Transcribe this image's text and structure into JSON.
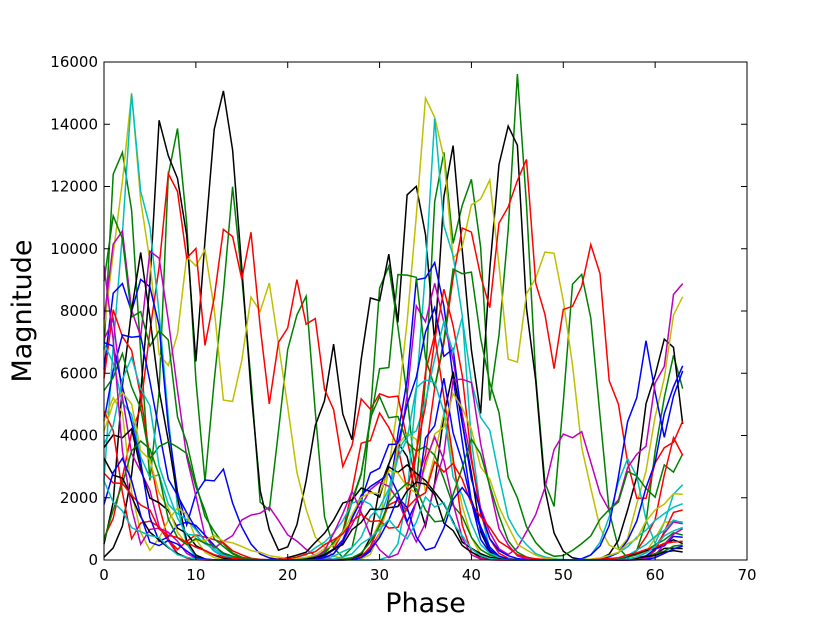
{
  "chart_data": {
    "type": "line",
    "title": "",
    "xlabel": "Phase",
    "ylabel": "Magnitude",
    "xlim": [
      0,
      70
    ],
    "ylim": [
      0,
      16000
    ],
    "x_ticks": [
      0,
      10,
      20,
      30,
      40,
      50,
      60,
      70
    ],
    "y_ticks": [
      0,
      2000,
      4000,
      6000,
      8000,
      10000,
      12000,
      14000,
      16000
    ],
    "grid": false,
    "legend": "none",
    "colors": [
      "#0000ff",
      "#008000",
      "#ff0000",
      "#00bfbf",
      "#bf00bf",
      "#bfbf00",
      "#000000"
    ],
    "phase_points": 64,
    "series": [
      {
        "color": "#008000",
        "peaks": [
          [
            2,
            14800
          ],
          [
            8,
            13500
          ],
          [
            14,
            12000
          ],
          [
            21,
            9100
          ],
          [
            31,
            10100
          ],
          [
            37,
            13800
          ],
          [
            40,
            12800
          ],
          [
            45,
            14000
          ],
          [
            52,
            10300
          ],
          [
            62,
            6700
          ]
        ]
      },
      {
        "color": "#000000",
        "peaks": [
          [
            7,
            14600
          ],
          [
            13,
            13600
          ],
          [
            25,
            6100
          ],
          [
            30,
            9500
          ],
          [
            34,
            11700
          ],
          [
            38,
            11900
          ],
          [
            44,
            13300
          ],
          [
            61,
            7600
          ]
        ]
      },
      {
        "color": "#bfbf00",
        "peaks": [
          [
            3,
            13800
          ],
          [
            10,
            10700
          ],
          [
            17,
            8400
          ],
          [
            36,
            14100
          ],
          [
            41,
            11600
          ],
          [
            48,
            9900
          ],
          [
            63,
            7800
          ]
        ]
      },
      {
        "color": "#ff0000",
        "peaks": [
          [
            8,
            11300
          ],
          [
            14,
            11000
          ],
          [
            21,
            8600
          ],
          [
            30,
            5600
          ],
          [
            40,
            11100
          ],
          [
            45,
            12000
          ],
          [
            52,
            9900
          ],
          [
            63,
            4300
          ]
        ]
      },
      {
        "color": "#00bfbf",
        "peaks": [
          [
            3,
            13200
          ],
          [
            5,
            11000
          ],
          [
            36,
            12600
          ],
          [
            38,
            9000
          ],
          [
            57,
            3200
          ],
          [
            63,
            2400
          ]
        ]
      },
      {
        "color": "#0000ff",
        "peaks": [
          [
            2,
            9200
          ],
          [
            4,
            10100
          ],
          [
            12,
            2900
          ],
          [
            35,
            10100
          ],
          [
            36,
            9600
          ],
          [
            59,
            6800
          ],
          [
            63,
            6200
          ]
        ]
      },
      {
        "color": "#bf00bf",
        "peaks": [
          [
            2,
            9500
          ],
          [
            5,
            9000
          ],
          [
            17,
            1600
          ],
          [
            36,
            9300
          ],
          [
            51,
            4100
          ],
          [
            59,
            3700
          ],
          [
            63,
            9100
          ]
        ]
      },
      {
        "color": "#008000",
        "peaks": [
          [
            1,
            10200
          ],
          [
            5,
            7800
          ],
          [
            33,
            8400
          ],
          [
            39,
            8700
          ],
          [
            58,
            2600
          ],
          [
            63,
            3200
          ]
        ]
      },
      {
        "color": "#000000",
        "peaks": [
          [
            4,
            11100
          ],
          [
            6,
            4200
          ],
          [
            32,
            4400
          ],
          [
            38,
            6100
          ],
          [
            62,
            400
          ]
        ]
      },
      {
        "color": "#ff0000",
        "peaks": [
          [
            2,
            8400
          ],
          [
            11,
            800
          ],
          [
            30,
            5000
          ],
          [
            37,
            8200
          ],
          [
            63,
            3800
          ]
        ]
      },
      {
        "color": "#0000ff",
        "peaks": [
          [
            3,
            8000
          ],
          [
            6,
            3000
          ],
          [
            31,
            3600
          ],
          [
            36,
            7800
          ],
          [
            63,
            5800
          ]
        ]
      },
      {
        "color": "#00bfbf",
        "peaks": [
          [
            0,
            6200
          ],
          [
            5,
            2500
          ],
          [
            34,
            3800
          ],
          [
            38,
            7600
          ],
          [
            63,
            2000
          ]
        ]
      },
      {
        "color": "#bfbf00",
        "peaks": [
          [
            1,
            5600
          ],
          [
            8,
            1600
          ],
          [
            33,
            4600
          ],
          [
            37,
            4200
          ],
          [
            62,
            1400
          ]
        ]
      },
      {
        "color": "#bf00bf",
        "peaks": [
          [
            0,
            7600
          ],
          [
            3,
            3000
          ],
          [
            30,
            2800
          ],
          [
            39,
            5800
          ],
          [
            63,
            1200
          ]
        ]
      },
      {
        "color": "#008000",
        "peaks": [
          [
            2,
            6400
          ],
          [
            7,
            3900
          ],
          [
            31,
            5200
          ],
          [
            35,
            3600
          ],
          [
            63,
            900
          ]
        ]
      },
      {
        "color": "#000000",
        "peaks": [
          [
            1,
            4400
          ],
          [
            4,
            2200
          ],
          [
            29,
            2400
          ],
          [
            33,
            3200
          ],
          [
            63,
            600
          ]
        ]
      },
      {
        "color": "#ff0000",
        "peaks": [
          [
            0,
            4600
          ],
          [
            5,
            1400
          ],
          [
            32,
            2200
          ],
          [
            36,
            6600
          ],
          [
            63,
            1800
          ]
        ]
      },
      {
        "color": "#0000ff",
        "peaks": [
          [
            1,
            7200
          ],
          [
            9,
            1100
          ],
          [
            30,
            3000
          ],
          [
            37,
            5200
          ],
          [
            63,
            800
          ]
        ]
      },
      {
        "color": "#00bfbf",
        "peaks": [
          [
            3,
            5800
          ],
          [
            8,
            900
          ],
          [
            28,
            1800
          ],
          [
            35,
            5400
          ],
          [
            63,
            1400
          ]
        ]
      },
      {
        "color": "#bfbf00",
        "peaks": [
          [
            2,
            4800
          ],
          [
            12,
            700
          ],
          [
            31,
            2600
          ],
          [
            38,
            4800
          ],
          [
            63,
            2200
          ]
        ]
      },
      {
        "color": "#bf00bf",
        "peaks": [
          [
            0,
            8600
          ],
          [
            6,
            1200
          ],
          [
            27,
            2000
          ],
          [
            36,
            4400
          ],
          [
            63,
            1000
          ]
        ]
      },
      {
        "color": "#008000",
        "peaks": [
          [
            4,
            3600
          ],
          [
            10,
            600
          ],
          [
            33,
            2800
          ],
          [
            40,
            3600
          ],
          [
            63,
            500
          ]
        ]
      },
      {
        "color": "#000000",
        "peaks": [
          [
            0,
            3200
          ],
          [
            2,
            1800
          ],
          [
            30,
            1600
          ],
          [
            34,
            2400
          ],
          [
            63,
            300
          ]
        ]
      },
      {
        "color": "#ff0000",
        "peaks": [
          [
            1,
            2800
          ],
          [
            6,
            800
          ],
          [
            29,
            1400
          ],
          [
            37,
            3000
          ],
          [
            63,
            700
          ]
        ]
      },
      {
        "color": "#0000ff",
        "peaks": [
          [
            2,
            3400
          ],
          [
            7,
            600
          ],
          [
            32,
            1800
          ],
          [
            39,
            2600
          ],
          [
            63,
            400
          ]
        ]
      },
      {
        "color": "#00bfbf",
        "peaks": [
          [
            0,
            2400
          ],
          [
            4,
            1000
          ],
          [
            31,
            1200
          ],
          [
            36,
            2000
          ],
          [
            63,
            1100
          ]
        ]
      }
    ]
  }
}
